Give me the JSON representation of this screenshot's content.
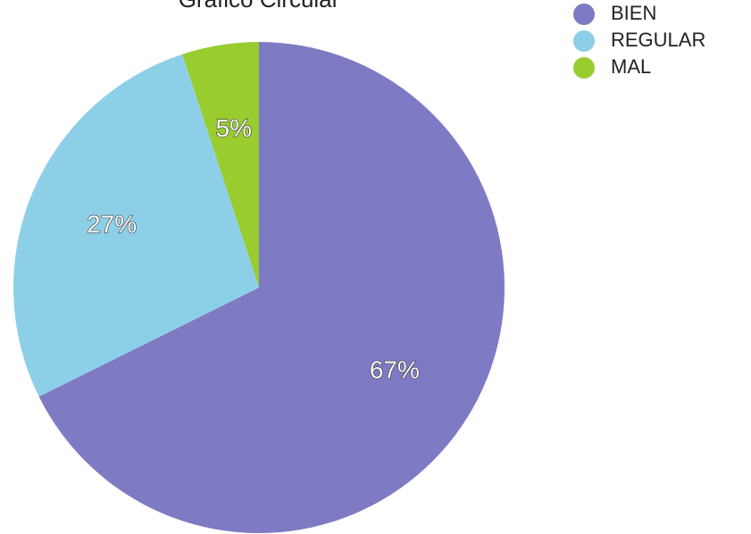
{
  "chart_data": {
    "type": "pie",
    "title": "Gráfico Circular",
    "categories": [
      "BIEN",
      "REGULAR",
      "MAL"
    ],
    "values": [
      67,
      27,
      5
    ],
    "labels": [
      "67%",
      "27%",
      "5%"
    ],
    "colors": [
      "#7e7ac4",
      "#8ecfe8",
      "#98cc2f"
    ],
    "legend_position": "top-right",
    "start_angle": "12 o'clock",
    "direction": "clockwise"
  }
}
